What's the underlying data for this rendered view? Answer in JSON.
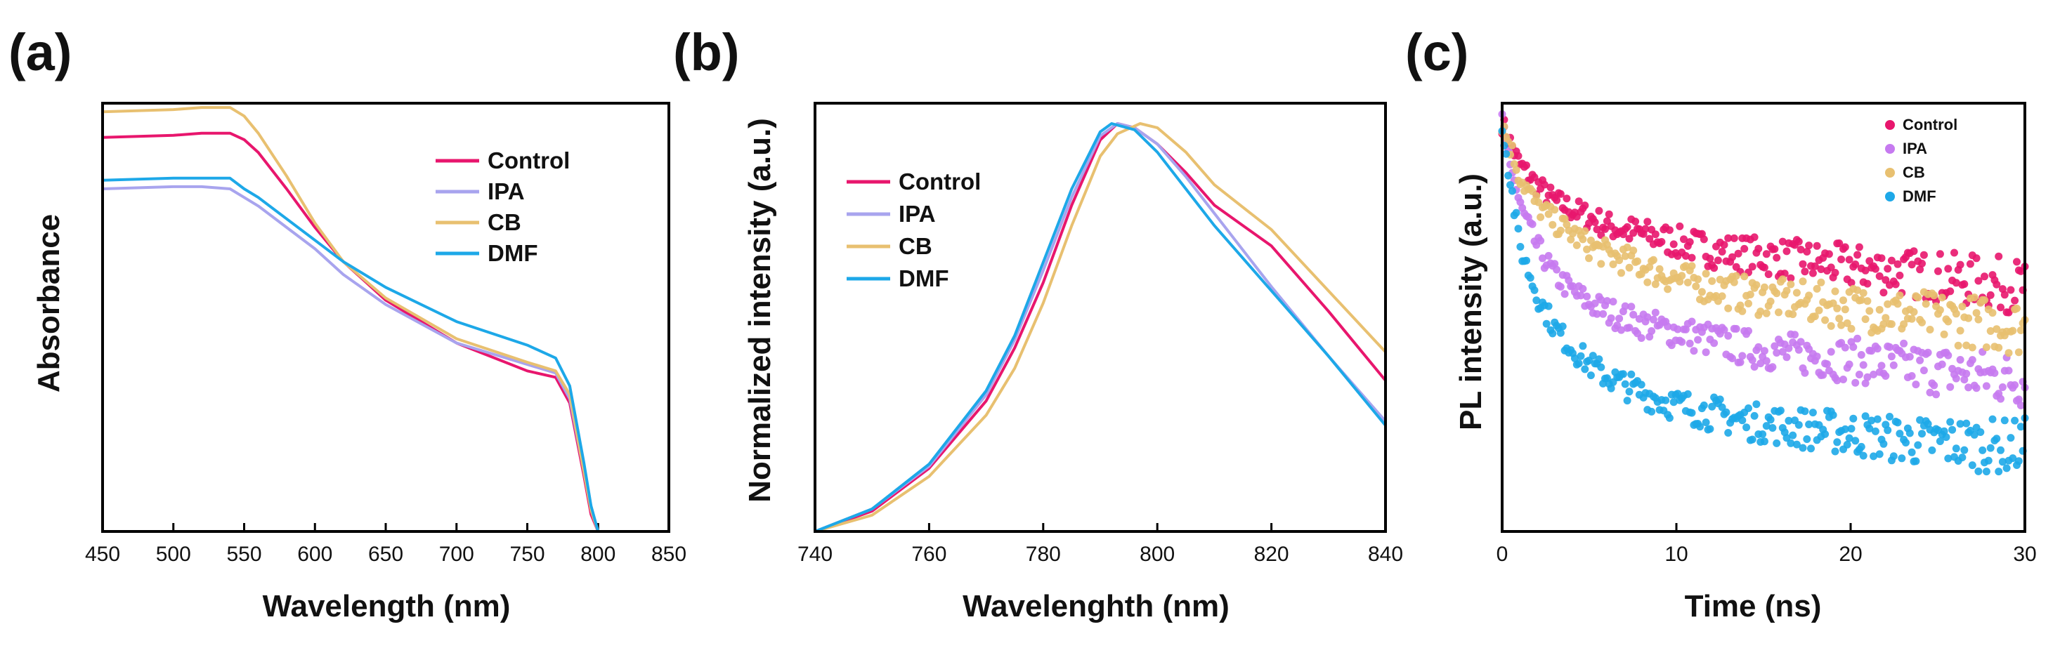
{
  "colors": {
    "Control": "#e8166d",
    "IPA": "#a8a4ee",
    "CB": "#e8c070",
    "DMF": "#1da8e8",
    "dot_Control": "#e8166d",
    "dot_IPA": "#c67af0",
    "dot_CB": "#e8c070",
    "dot_DMF": "#1da8e8"
  },
  "panels": [
    {
      "label": "(a)",
      "xlabel": "Wavelength (nm)",
      "ylabel": "Absorbance"
    },
    {
      "label": "(b)",
      "xlabel": "Wavelenghth (nm)",
      "ylabel": "Normalized intensity (a.u.)"
    },
    {
      "label": "(c)",
      "xlabel": "Time (ns)",
      "ylabel": "PL intensity (a.u.)"
    }
  ],
  "chart_data": [
    {
      "type": "line",
      "title": "",
      "xlabel": "Wavelength (nm)",
      "ylabel": "Absorbance",
      "xlim": [
        450,
        850
      ],
      "ylim": [
        0,
        1.0
      ],
      "xticks": [
        450,
        500,
        550,
        600,
        650,
        700,
        750,
        800,
        850
      ],
      "yticks_shown": false,
      "legend": "top-right",
      "series": [
        {
          "name": "Control",
          "x": [
            450,
            500,
            520,
            540,
            550,
            560,
            580,
            600,
            620,
            650,
            700,
            750,
            770,
            780,
            790,
            795,
            800
          ],
          "y": [
            0.92,
            0.925,
            0.93,
            0.93,
            0.915,
            0.885,
            0.8,
            0.71,
            0.63,
            0.54,
            0.44,
            0.375,
            0.36,
            0.3,
            0.13,
            0.04,
            0.0
          ]
        },
        {
          "name": "IPA",
          "x": [
            450,
            500,
            520,
            540,
            550,
            560,
            580,
            600,
            620,
            650,
            700,
            750,
            770,
            780,
            790,
            795,
            800
          ],
          "y": [
            0.8,
            0.805,
            0.805,
            0.8,
            0.78,
            0.76,
            0.71,
            0.66,
            0.6,
            0.53,
            0.44,
            0.39,
            0.37,
            0.31,
            0.14,
            0.05,
            0.0
          ]
        },
        {
          "name": "CB",
          "x": [
            450,
            500,
            520,
            540,
            550,
            560,
            580,
            600,
            620,
            650,
            700,
            750,
            770,
            780,
            790,
            795,
            800
          ],
          "y": [
            0.98,
            0.985,
            0.99,
            0.99,
            0.97,
            0.93,
            0.83,
            0.72,
            0.63,
            0.545,
            0.45,
            0.395,
            0.375,
            0.32,
            0.14,
            0.05,
            0.0
          ]
        },
        {
          "name": "DMF",
          "x": [
            450,
            500,
            520,
            540,
            550,
            560,
            580,
            600,
            620,
            650,
            700,
            750,
            770,
            780,
            790,
            795,
            800
          ],
          "y": [
            0.82,
            0.825,
            0.825,
            0.825,
            0.8,
            0.78,
            0.73,
            0.68,
            0.63,
            0.57,
            0.49,
            0.435,
            0.405,
            0.34,
            0.16,
            0.06,
            0.0
          ]
        }
      ]
    },
    {
      "type": "line",
      "title": "",
      "xlabel": "Wavelenghth (nm)",
      "ylabel": "Normalized intensity (a.u.)",
      "xlim": [
        740,
        840
      ],
      "ylim": [
        0,
        1.05
      ],
      "xticks": [
        740,
        760,
        780,
        800,
        820,
        840
      ],
      "yticks_shown": false,
      "legend": "top-left",
      "series": [
        {
          "name": "Control",
          "x": [
            740,
            750,
            760,
            770,
            775,
            780,
            785,
            790,
            793,
            796,
            800,
            805,
            810,
            820,
            830,
            840
          ],
          "y": [
            0.0,
            0.05,
            0.155,
            0.32,
            0.45,
            0.61,
            0.8,
            0.96,
            1.0,
            0.99,
            0.95,
            0.88,
            0.8,
            0.7,
            0.54,
            0.37
          ]
        },
        {
          "name": "IPA",
          "x": [
            740,
            750,
            760,
            770,
            775,
            780,
            785,
            790,
            793,
            796,
            800,
            805,
            810,
            820,
            830,
            840
          ],
          "y": [
            0.0,
            0.055,
            0.16,
            0.335,
            0.47,
            0.64,
            0.82,
            0.97,
            1.0,
            0.99,
            0.95,
            0.87,
            0.78,
            0.6,
            0.43,
            0.27
          ]
        },
        {
          "name": "CB",
          "x": [
            740,
            750,
            760,
            770,
            775,
            780,
            785,
            790,
            793,
            797,
            800,
            805,
            810,
            820,
            830,
            840
          ],
          "y": [
            0.0,
            0.04,
            0.135,
            0.285,
            0.4,
            0.56,
            0.75,
            0.92,
            0.975,
            1.0,
            0.99,
            0.93,
            0.85,
            0.74,
            0.59,
            0.44
          ]
        },
        {
          "name": "DMF",
          "x": [
            740,
            750,
            760,
            770,
            775,
            780,
            785,
            790,
            792,
            796,
            800,
            805,
            810,
            820,
            830,
            840
          ],
          "y": [
            0.0,
            0.055,
            0.165,
            0.345,
            0.48,
            0.66,
            0.84,
            0.98,
            1.0,
            0.985,
            0.93,
            0.84,
            0.75,
            0.59,
            0.43,
            0.26
          ]
        }
      ]
    },
    {
      "type": "scatter",
      "title": "",
      "xlabel": "Time (ns)",
      "ylabel": "PL intensity (a.u.)",
      "xlim": [
        0,
        30
      ],
      "ylim": [
        0,
        1.05
      ],
      "xticks": [
        0,
        10,
        20,
        30
      ],
      "yticks_shown": false,
      "legend": "top-right",
      "series": [
        {
          "name": "Control",
          "x": [
            0,
            0.5,
            1,
            2,
            3,
            4,
            5,
            6,
            8,
            10,
            12,
            14,
            16,
            18,
            20,
            22,
            24,
            26,
            28,
            30
          ],
          "y": [
            1.0,
            0.95,
            0.9,
            0.85,
            0.81,
            0.79,
            0.77,
            0.75,
            0.73,
            0.71,
            0.69,
            0.68,
            0.67,
            0.66,
            0.65,
            0.64,
            0.63,
            0.62,
            0.61,
            0.6
          ]
        },
        {
          "name": "IPA",
          "x": [
            0,
            0.5,
            1,
            2,
            3,
            4,
            5,
            6,
            8,
            10,
            12,
            14,
            16,
            18,
            20,
            22,
            24,
            26,
            28,
            30
          ],
          "y": [
            1.0,
            0.9,
            0.8,
            0.7,
            0.63,
            0.59,
            0.56,
            0.54,
            0.51,
            0.49,
            0.47,
            0.45,
            0.44,
            0.43,
            0.42,
            0.41,
            0.4,
            0.39,
            0.38,
            0.37
          ]
        },
        {
          "name": "CB",
          "x": [
            0,
            0.5,
            1,
            2,
            3,
            4,
            5,
            6,
            8,
            10,
            12,
            14,
            16,
            18,
            20,
            22,
            24,
            26,
            28,
            30
          ],
          "y": [
            1.0,
            0.94,
            0.87,
            0.8,
            0.76,
            0.73,
            0.7,
            0.68,
            0.65,
            0.62,
            0.6,
            0.58,
            0.57,
            0.56,
            0.55,
            0.54,
            0.53,
            0.52,
            0.51,
            0.5
          ]
        },
        {
          "name": "DMF",
          "x": [
            0,
            0.5,
            1,
            2,
            3,
            4,
            5,
            6,
            8,
            10,
            12,
            14,
            16,
            18,
            20,
            22,
            24,
            26,
            28,
            30
          ],
          "y": [
            1.0,
            0.85,
            0.7,
            0.58,
            0.5,
            0.45,
            0.41,
            0.38,
            0.34,
            0.31,
            0.29,
            0.27,
            0.26,
            0.25,
            0.24,
            0.23,
            0.22,
            0.22,
            0.21,
            0.21
          ]
        }
      ]
    }
  ]
}
